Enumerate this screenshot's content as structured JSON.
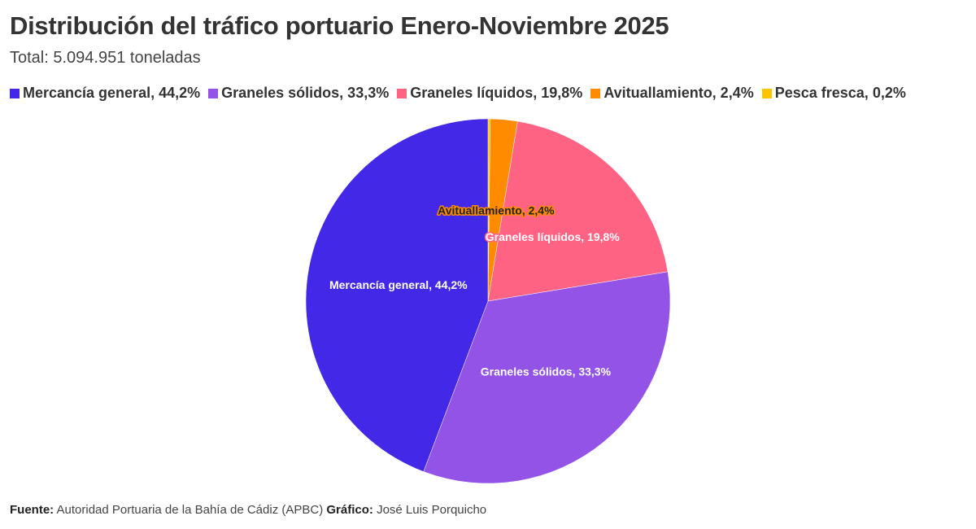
{
  "title": "Distribución del tráfico portuario Enero-Noviembre 2025",
  "subtitle": "Total: 5.094.951 toneladas",
  "footer": {
    "source_label": "Fuente:",
    "source": "Autoridad Portuaria de la Bahía de Cádiz (APBC)",
    "chart_label": "Gráfico:",
    "author": "José Luis Porquicho"
  },
  "chart_data": {
    "type": "pie",
    "title": "Distribución del tráfico portuario Enero-Noviembre 2025",
    "legend_position": "top",
    "slices": [
      {
        "name": "Mercancía general",
        "value": 44.2,
        "label": "Mercancía general, 44,2%",
        "color": "#4328e7",
        "text_color": "#ffffff"
      },
      {
        "name": "Graneles sólidos",
        "value": 33.3,
        "label": "Graneles sólidos, 33,3%",
        "color": "#9353e6",
        "text_color": "#ffffff"
      },
      {
        "name": "Graneles líquidos",
        "value": 19.8,
        "label": "Graneles líquidos, 19,8%",
        "color": "#ff6384",
        "text_color": "#ffffff"
      },
      {
        "name": "Avituallamiento",
        "value": 2.4,
        "label": "Avituallamiento, 2,4%",
        "color": "#ff8c00",
        "text_color": "#222222"
      },
      {
        "name": "Pesca fresca",
        "value": 0.2,
        "label": "Pesca fresca, 0,2%",
        "color": "#ffc400",
        "text_color": "#222222"
      }
    ]
  }
}
